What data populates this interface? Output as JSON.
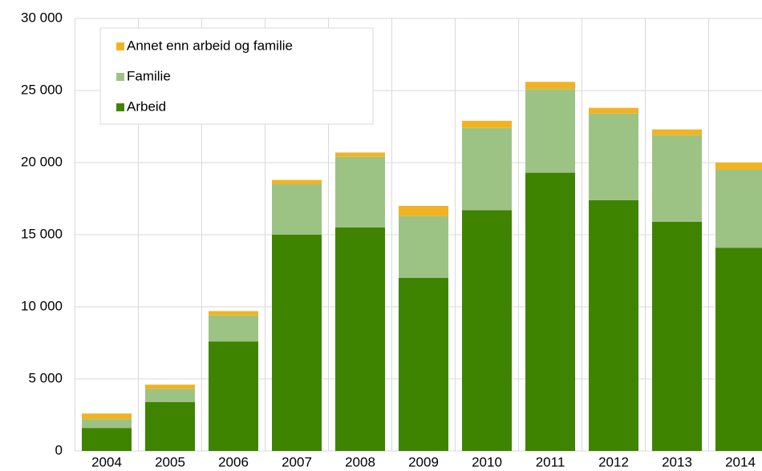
{
  "chart_data": {
    "type": "stacked_bar",
    "categories": [
      "2004",
      "2005",
      "2006",
      "2007",
      "2008",
      "2009",
      "2010",
      "2011",
      "2012",
      "2013",
      "2014"
    ],
    "series": [
      {
        "name": "Arbeid",
        "color": "#3f8400",
        "values": [
          1600,
          3400,
          7600,
          15000,
          15500,
          12000,
          16700,
          19300,
          17400,
          15900,
          14100
        ]
      },
      {
        "name": "Familie",
        "color": "#9dc384",
        "values": [
          600,
          900,
          1800,
          3500,
          4900,
          4300,
          5700,
          5800,
          6000,
          6000,
          5400
        ]
      },
      {
        "name": "Annet enn arbeid og familie",
        "color": "#f0b323",
        "values": [
          400,
          300,
          300,
          300,
          300,
          700,
          500,
          500,
          400,
          400,
          500
        ]
      }
    ],
    "ylim": [
      0,
      30000
    ],
    "yticks": [
      0,
      {
        "value": 5000,
        "label": "5 000"
      },
      {
        "value": 10000,
        "label": "10 000"
      },
      {
        "value": 15000,
        "label": "15 000"
      },
      {
        "value": 20000,
        "label": "20 000"
      },
      {
        "value": 25000,
        "label": "25 000"
      },
      {
        "value": 30000,
        "label": "30 000"
      }
    ],
    "grid": true,
    "legend": "upper left"
  }
}
